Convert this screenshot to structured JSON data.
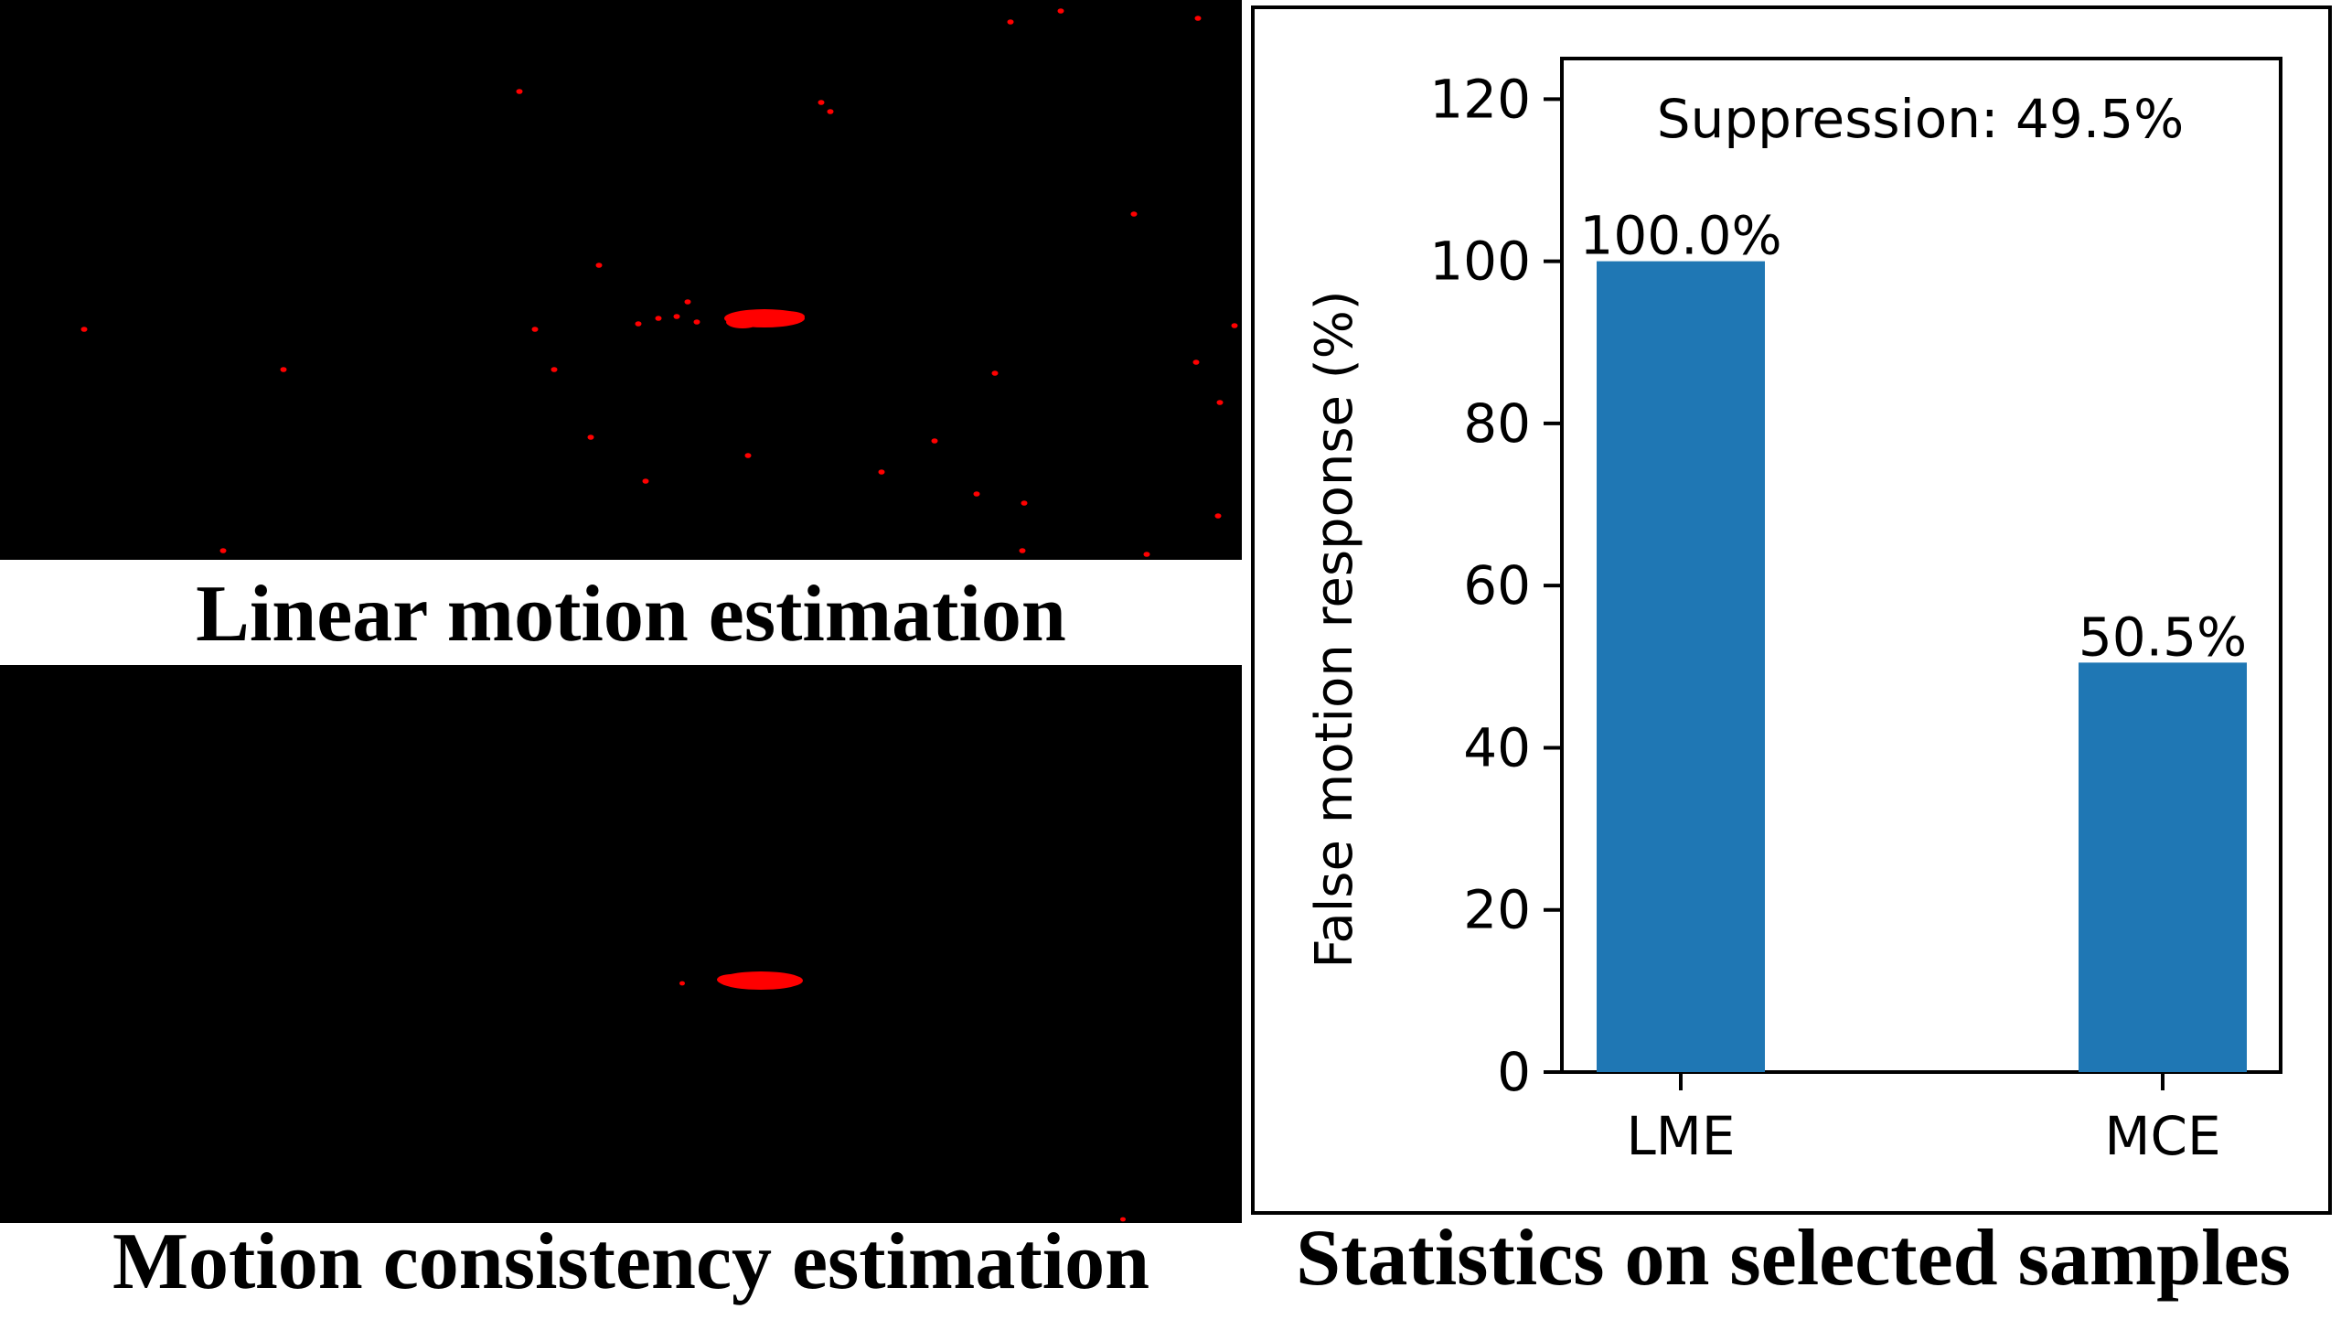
{
  "captions": {
    "top_left": "Linear motion estimation",
    "bottom_left": "Motion consistency estimation",
    "right": "Statistics on selected samples"
  },
  "colors": {
    "bar": "#1f77b4",
    "detections": "#ff0000",
    "map_background": "#000000"
  },
  "chart_data": {
    "type": "bar",
    "categories": [
      "LME",
      "MCE"
    ],
    "values": [
      100.0,
      50.5
    ],
    "data_labels": [
      "100.0%",
      "50.5%"
    ],
    "annotation": "Suppression: 49.5%",
    "title": "",
    "xlabel": "",
    "ylabel": "False motion response (%)",
    "ylim": [
      0,
      125
    ],
    "yticks": [
      0,
      20,
      40,
      60,
      80,
      100,
      120
    ],
    "grid": false
  }
}
